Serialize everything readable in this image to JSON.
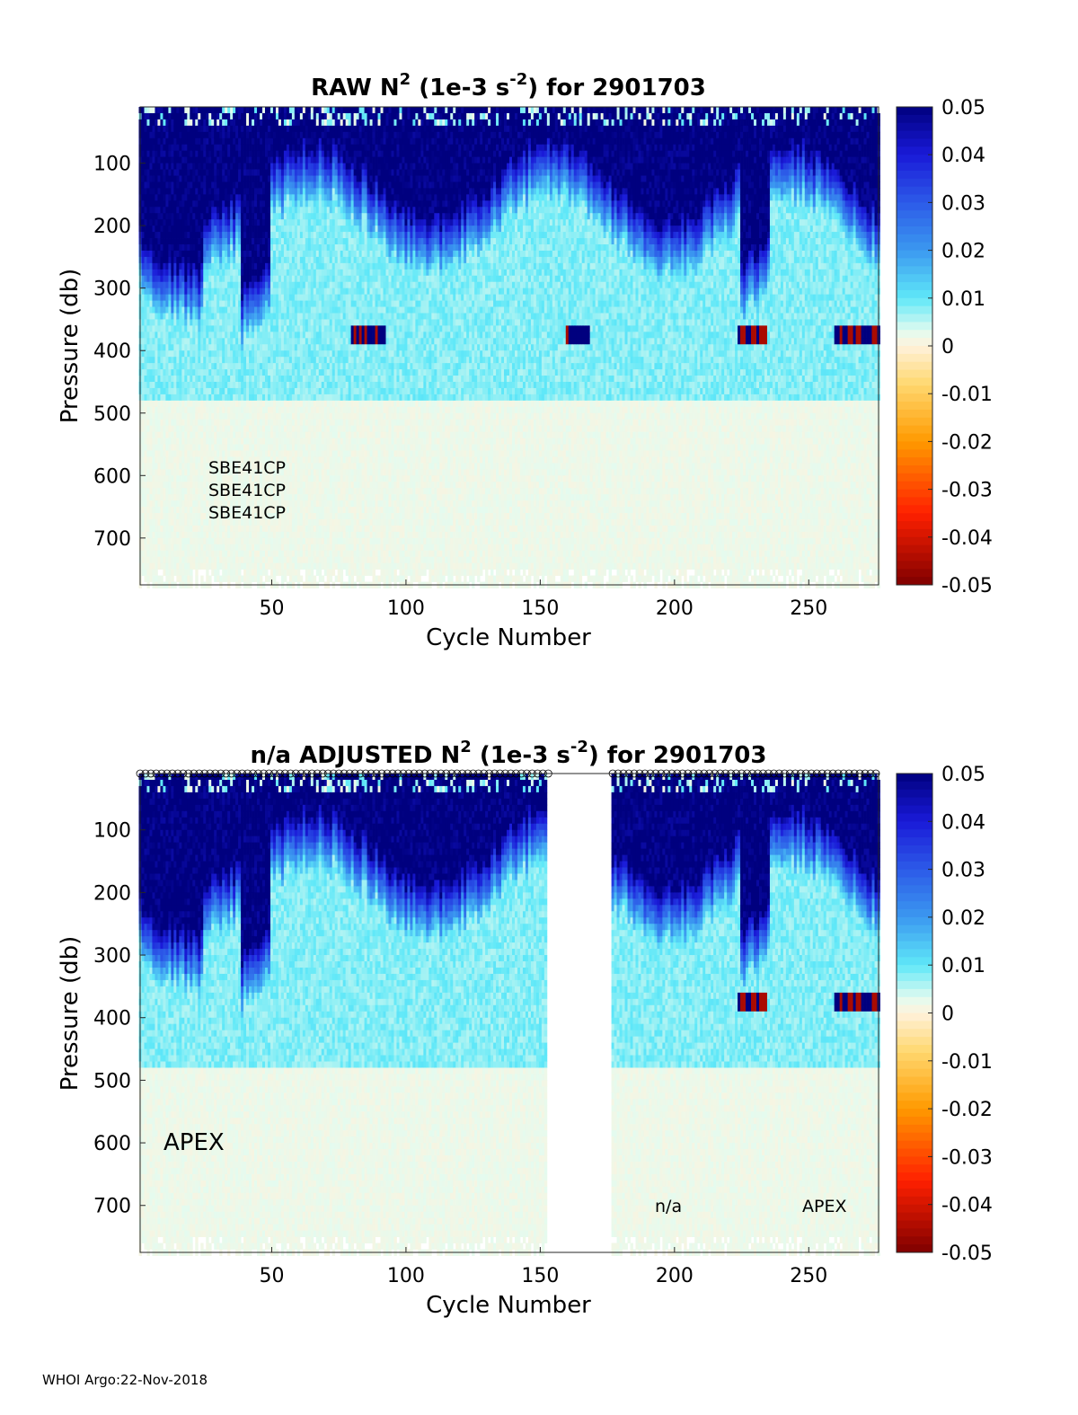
{
  "footer": "WHOI Argo:22-Nov-2018",
  "colormap": {
    "stops": [
      {
        "v": -0.05,
        "c": "#7f0000"
      },
      {
        "v": -0.035,
        "c": "#ff2000"
      },
      {
        "v": -0.02,
        "c": "#ff9a00"
      },
      {
        "v": -0.008,
        "c": "#ffd870"
      },
      {
        "v": 0.0,
        "c": "#fff2dc"
      },
      {
        "v": 0.003,
        "c": "#e4fbef"
      },
      {
        "v": 0.01,
        "c": "#5fe8f8"
      },
      {
        "v": 0.02,
        "c": "#3b98f0"
      },
      {
        "v": 0.03,
        "c": "#2c5ae8"
      },
      {
        "v": 0.04,
        "c": "#1a1ad8"
      },
      {
        "v": 0.05,
        "c": "#00007f"
      }
    ],
    "ticks": [
      "0.05",
      "0.04",
      "0.03",
      "0.02",
      "0.01",
      "0",
      "-0.01",
      "-0.02",
      "-0.03",
      "-0.04",
      "-0.05"
    ]
  },
  "chart_data": [
    {
      "type": "heatmap",
      "title_main": "RAW N",
      "title_sup": "2",
      "title_mid": " (1e-3 s",
      "title_sup2": "-2",
      "title_end": ") for 2901703",
      "xlabel": "Cycle Number",
      "ylabel": "Pressure (db)",
      "xlim": [
        1,
        276
      ],
      "ylim": [
        10,
        775
      ],
      "y_reversed": true,
      "xticks": [
        50,
        100,
        150,
        200,
        250
      ],
      "yticks": [
        100,
        200,
        300,
        400,
        500,
        600,
        700
      ],
      "clim": [
        -0.05,
        0.05
      ],
      "annotations": [
        "SBE41CP",
        "SBE41CP",
        "SBE41CP"
      ],
      "missing_cycles": [],
      "features": {
        "deep_blue_mixed_layer_top": "0.045 to 0.05 from surface to ~100-200 db",
        "deep_intrusions_cycles": [
          44,
          230
        ],
        "negative_band_pressure": 370,
        "negative_band_cycles": [
          [
            80,
            92
          ],
          [
            160,
            168
          ],
          [
            224,
            234
          ],
          [
            260,
            276
          ]
        ],
        "background_below_500": 0.002
      }
    },
    {
      "type": "heatmap",
      "title_main": "n/a  ADJUSTED N",
      "title_sup": "2",
      "title_mid": " (1e-3 s",
      "title_sup2": "-2",
      "title_end": ") for 2901703",
      "xlabel": "Cycle Number",
      "ylabel": "Pressure (db)",
      "xlim": [
        1,
        276
      ],
      "ylim": [
        10,
        775
      ],
      "y_reversed": true,
      "xticks": [
        50,
        100,
        150,
        200,
        250
      ],
      "yticks": [
        100,
        200,
        300,
        400,
        500,
        600,
        700
      ],
      "clim": [
        -0.05,
        0.05
      ],
      "annotations": [
        "APEX",
        "n/a",
        "APEX"
      ],
      "missing_cycles": [
        153,
        176
      ],
      "features": {
        "deep_blue_mixed_layer_top": "0.045 to 0.05 from surface to ~100-200 db",
        "deep_intrusions_cycles": [
          44,
          230
        ],
        "negative_band_pressure": 370,
        "negative_band_cycles": [
          [
            224,
            234
          ],
          [
            260,
            276
          ]
        ],
        "background_below_500": 0.002
      }
    }
  ]
}
